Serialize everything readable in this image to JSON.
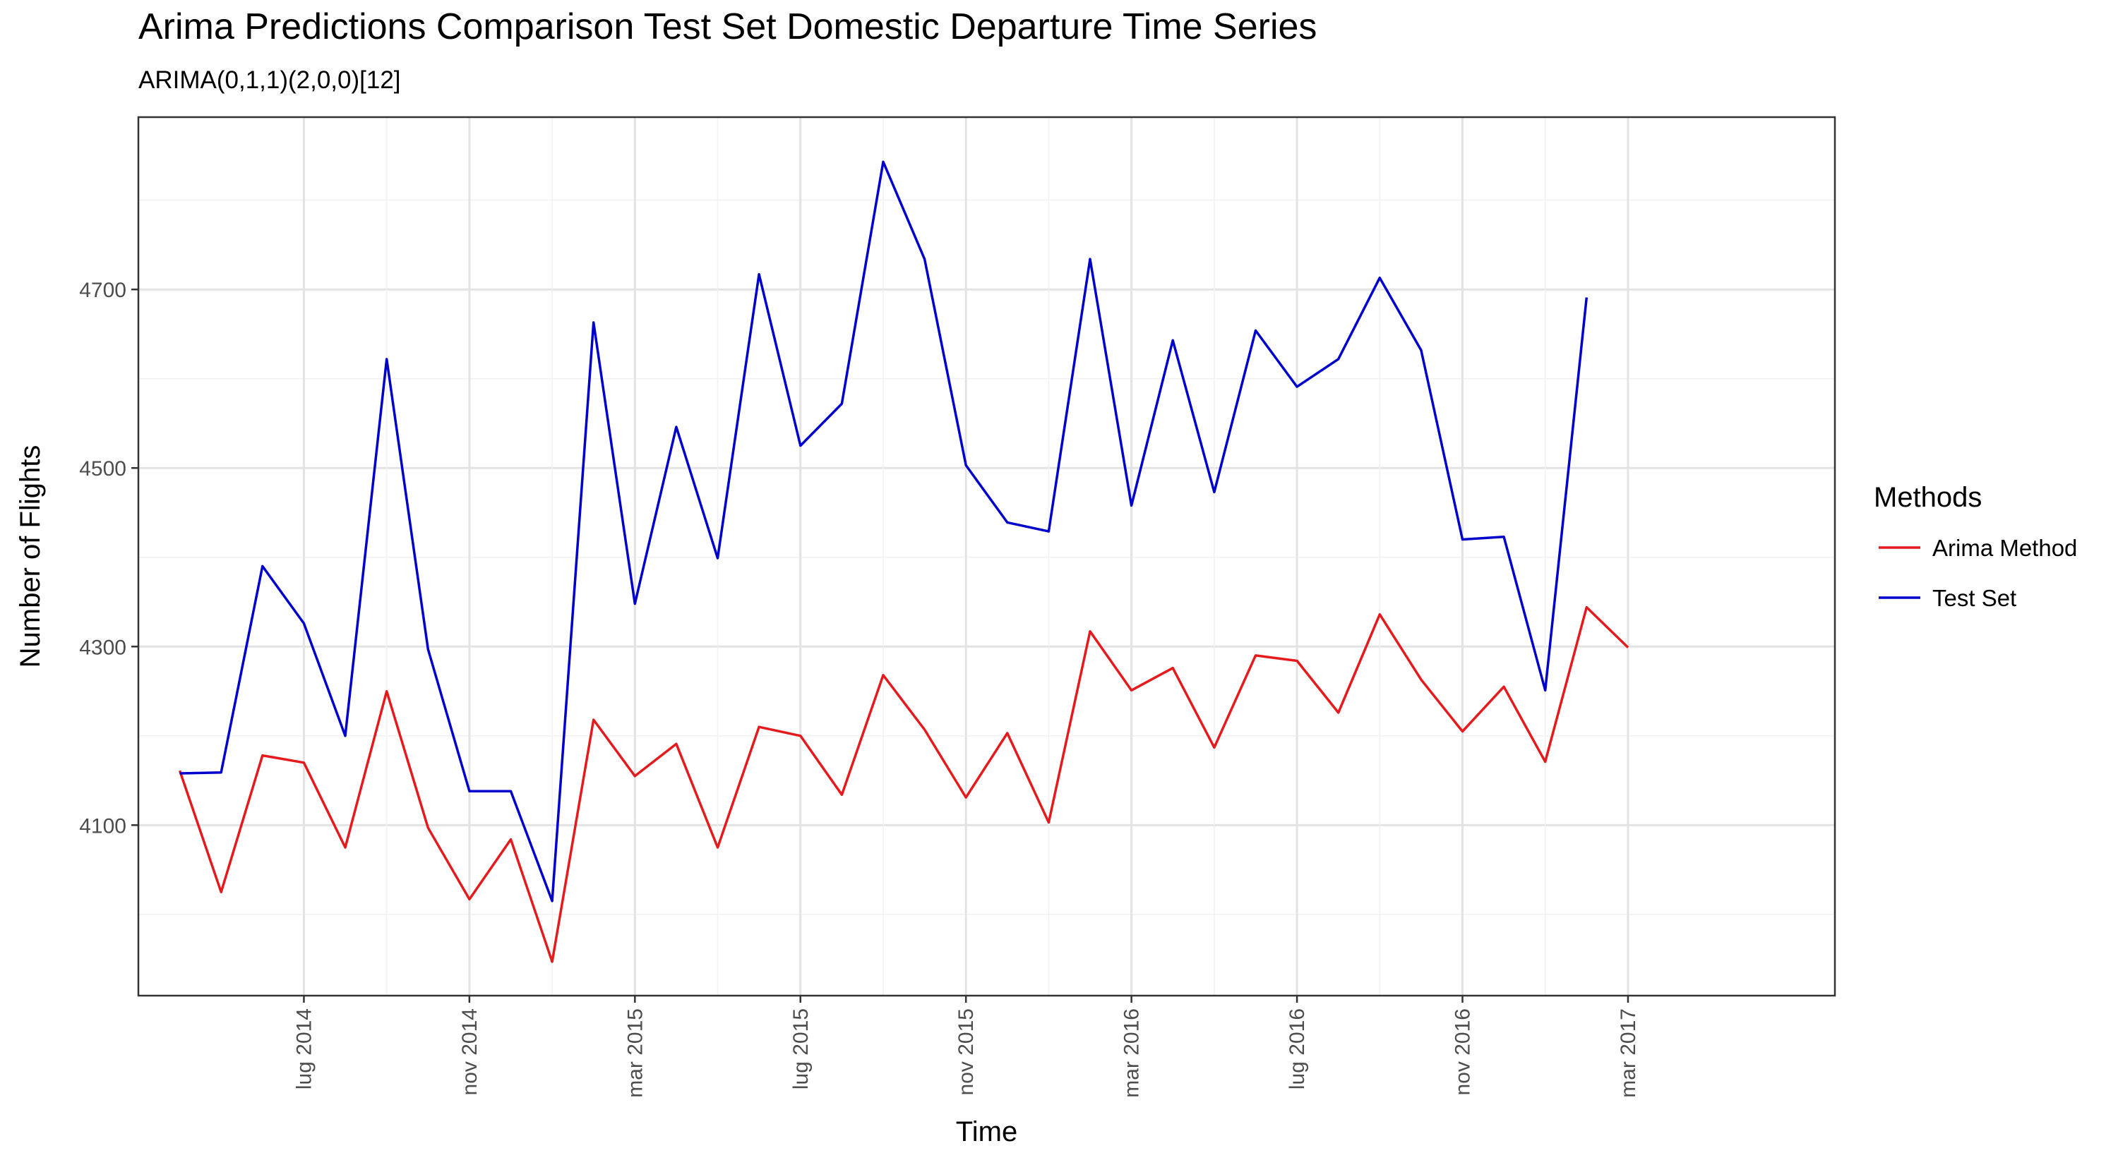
{
  "chart_data": {
    "type": "line",
    "title": "Arima Predictions Comparison Test Set Domestic Departure Time Series",
    "subtitle": "ARIMA(0,1,1)(2,0,0)[12]",
    "xlabel": "Time",
    "ylabel": "Number of Flights",
    "x_start": "2014-04",
    "x_ticks": [
      {
        "date": "2014-07",
        "label": "lug 2014"
      },
      {
        "date": "2014-11",
        "label": "nov 2014"
      },
      {
        "date": "2015-03",
        "label": "mar 2015"
      },
      {
        "date": "2015-07",
        "label": "lug 2015"
      },
      {
        "date": "2015-11",
        "label": "nov 2015"
      },
      {
        "date": "2016-03",
        "label": "mar 2016"
      },
      {
        "date": "2016-07",
        "label": "lug 2016"
      },
      {
        "date": "2016-11",
        "label": "nov 2016"
      },
      {
        "date": "2017-03",
        "label": "mar 2017"
      }
    ],
    "xlim": [
      "2014-03",
      "2017-08"
    ],
    "y_ticks": [
      4100,
      4300,
      4500,
      4700
    ],
    "ylim": [
      3909,
      4893
    ],
    "grid": true,
    "legend_title": "Methods",
    "legend_position": "right",
    "series": [
      {
        "name": "Arima Method",
        "color": "#e41a1c",
        "values": [
          4161,
          4025,
          4178,
          4170,
          4075,
          4250,
          4097,
          4017,
          4084,
          3947,
          4218,
          4155,
          4191,
          4075,
          4210,
          4200,
          4134,
          4268,
          4207,
          4131,
          4203,
          4103,
          4317,
          4251,
          4276,
          4187,
          4290,
          4284,
          4226,
          4336,
          4263,
          4205,
          4255,
          4171,
          4344,
          4299
        ]
      },
      {
        "name": "Test Set",
        "color": "#0000cc",
        "values": [
          4158,
          4159,
          4390,
          4326,
          4200,
          4622,
          4297,
          4138,
          4138,
          4015,
          4663,
          4348,
          4546,
          4399,
          4717,
          4525,
          4572,
          4843,
          4734,
          4503,
          4439,
          4429,
          4734,
          4458,
          4643,
          4473,
          4654,
          4591,
          4622,
          4713,
          4632,
          4420,
          4423,
          4251,
          4691
        ]
      }
    ]
  }
}
